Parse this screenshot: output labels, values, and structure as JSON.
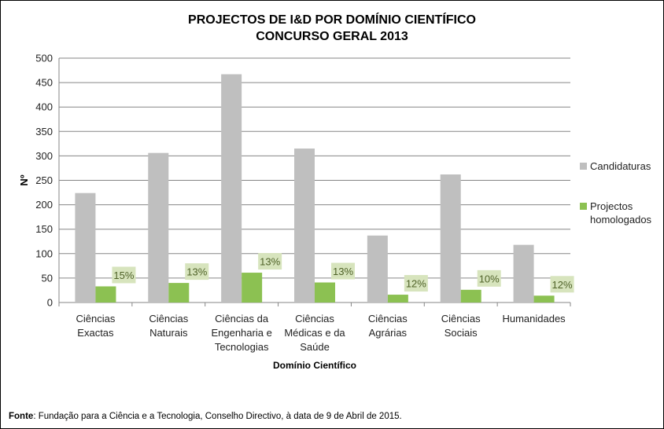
{
  "title": {
    "line1": "PROJECTOS DE I&D POR DOMÍNIO CIENTÍFICO",
    "line2": "CONCURSO GERAL 2013"
  },
  "chart_data": {
    "type": "bar",
    "categories": [
      [
        "Ciências",
        "Exactas"
      ],
      [
        "Ciências",
        "Naturais"
      ],
      [
        "Ciências da",
        "Engenharia e",
        "Tecnologias"
      ],
      [
        "Ciências",
        "Médicas e da",
        "Saúde"
      ],
      [
        "Ciências",
        "Agrárias"
      ],
      [
        "Ciências",
        "Sociais"
      ],
      [
        "Humanidades"
      ]
    ],
    "series": [
      {
        "name": "Candidaturas",
        "color": "#bfbfbf",
        "values": [
          224,
          306,
          467,
          315,
          137,
          262,
          118
        ]
      },
      {
        "name": "Projectos homologados",
        "legend_lines": [
          "Projectos",
          "homologados"
        ],
        "color": "#8cc152",
        "values": [
          33,
          40,
          61,
          41,
          16,
          26,
          14
        ]
      }
    ],
    "data_labels": [
      "15%",
      "13%",
      "13%",
      "13%",
      "12%",
      "10%",
      "12%"
    ],
    "data_label_bg": "#d7e4bd",
    "data_label_color": "#4f6228",
    "xlabel": "Domínio Científico",
    "ylabel": "Nº",
    "ylim": [
      0,
      500
    ],
    "yticks": [
      0,
      50,
      100,
      150,
      200,
      250,
      300,
      350,
      400,
      450,
      500
    ],
    "grid": true,
    "legend_position": "right"
  },
  "source": {
    "label": "Fonte",
    "text": ": Fundação para a Ciência e a Tecnologia, Conselho Directivo, à data de 9 de Abril de 2015."
  }
}
